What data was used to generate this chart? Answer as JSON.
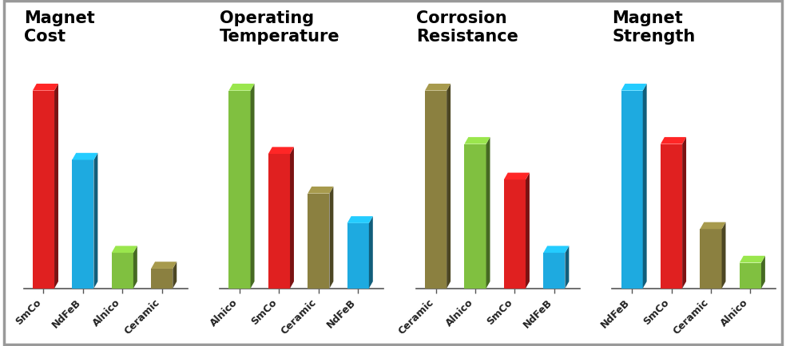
{
  "subplots": [
    {
      "title": "Magnet\nCost",
      "categories": [
        "SmCo",
        "NdFeB",
        "Alnico",
        "Ceramic"
      ],
      "values": [
        100,
        65,
        18,
        10
      ],
      "colors": [
        "#e02020",
        "#1eaae0",
        "#80c040",
        "#8B8040"
      ]
    },
    {
      "title": "Operating\nTemperature",
      "categories": [
        "Alnico",
        "SmCo",
        "Ceramic",
        "NdFeB"
      ],
      "values": [
        100,
        68,
        48,
        33
      ],
      "colors": [
        "#80c040",
        "#e02020",
        "#8B8040",
        "#1eaae0"
      ]
    },
    {
      "title": "Corrosion\nResistance",
      "categories": [
        "Ceramic",
        "Alnico",
        "SmCo",
        "NdFeB"
      ],
      "values": [
        100,
        73,
        55,
        18
      ],
      "colors": [
        "#8B8040",
        "#80c040",
        "#e02020",
        "#1eaae0"
      ]
    },
    {
      "title": "Magnet\nStrength",
      "categories": [
        "NdFeB",
        "SmCo",
        "Ceramic",
        "Alnico"
      ],
      "values": [
        100,
        73,
        30,
        13
      ],
      "colors": [
        "#1eaae0",
        "#e02020",
        "#8B8040",
        "#80c040"
      ]
    }
  ],
  "background_color": "#ffffff",
  "border_color": "#999999",
  "title_fontsize": 15,
  "tick_fontsize": 9,
  "bar_width": 0.55
}
